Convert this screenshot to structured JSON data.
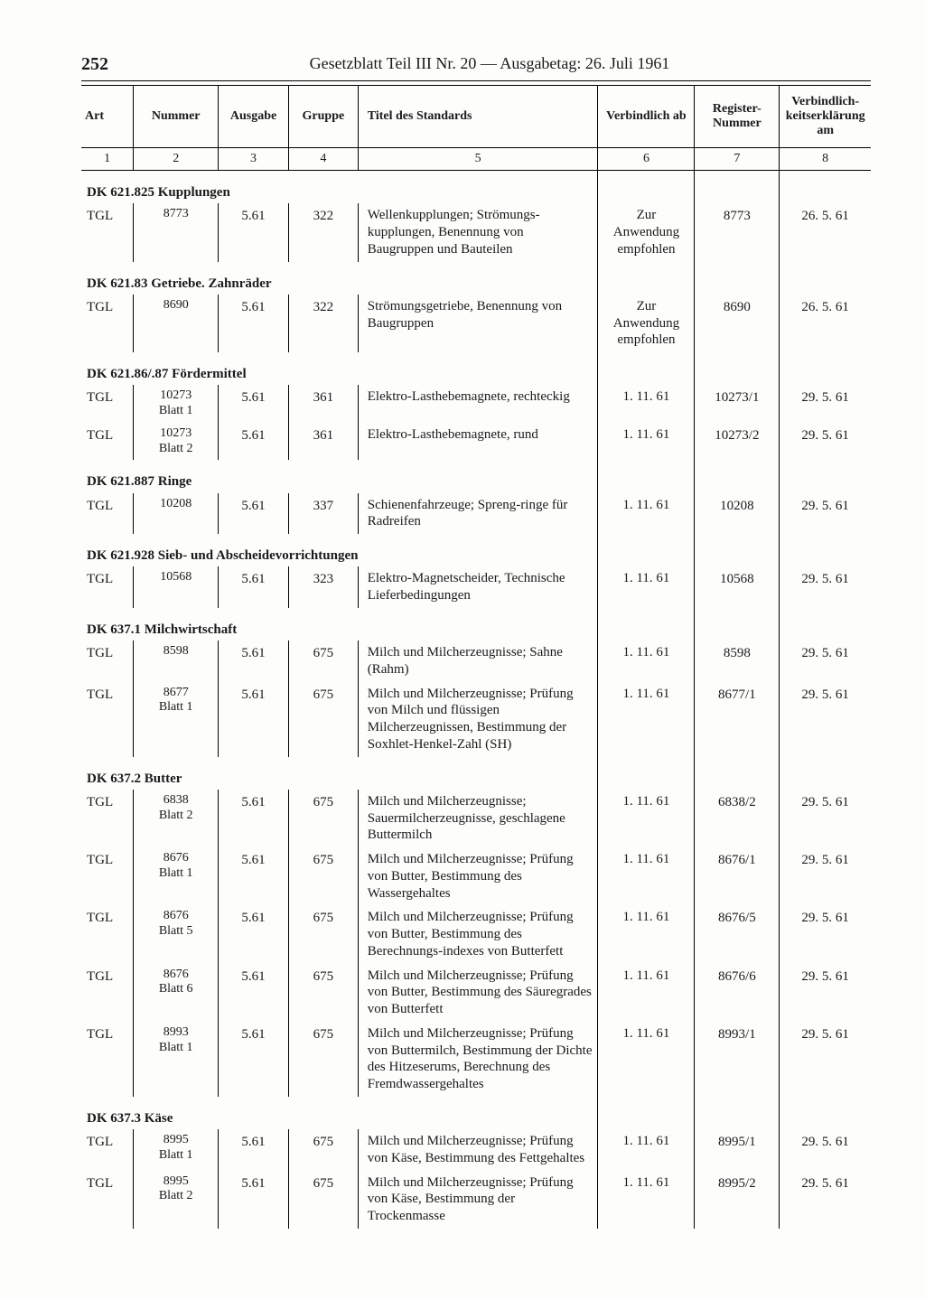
{
  "page_number": "252",
  "header": "Gesetzblatt Teil III Nr. 20 — Ausgabetag: 26. Juli 1961",
  "columns": {
    "c1": "Art",
    "c2": "Nummer",
    "c3": "Ausgabe",
    "c4": "Gruppe",
    "c5": "Titel des Standards",
    "c6": "Verbindlich ab",
    "c7": "Register-Nummer",
    "c8": "Verbindlich-keitserklärung am"
  },
  "colnums": {
    "n1": "1",
    "n2": "2",
    "n3": "3",
    "n4": "4",
    "n5": "5",
    "n6": "6",
    "n7": "7",
    "n8": "8"
  },
  "sections": [
    {
      "heading": "DK 621.825 Kupplungen",
      "rows": [
        {
          "art": "TGL",
          "nummer": "8773",
          "ausg": "5.61",
          "gruppe": "322",
          "titel": "Wellenkupplungen; Strömungs-kupplungen, Benennung von Baugruppen und Bauteilen",
          "verb": "Zur Anwendung empfohlen",
          "reg": "8773",
          "erkl": "26. 5. 61"
        }
      ]
    },
    {
      "heading": "DK 621.83 Getriebe. Zahnräder",
      "rows": [
        {
          "art": "TGL",
          "nummer": "8690",
          "ausg": "5.61",
          "gruppe": "322",
          "titel": "Strömungsgetriebe, Benennung von Baugruppen",
          "verb": "Zur Anwendung empfohlen",
          "reg": "8690",
          "erkl": "26. 5. 61"
        }
      ]
    },
    {
      "heading": "DK 621.86/.87 Fördermittel",
      "rows": [
        {
          "art": "TGL",
          "nummer": "10273",
          "nummer_sub": "Blatt 1",
          "ausg": "5.61",
          "gruppe": "361",
          "titel": "Elektro-Lasthebemagnete, rechteckig",
          "verb": "1. 11. 61",
          "reg": "10273/1",
          "erkl": "29. 5. 61"
        },
        {
          "art": "TGL",
          "nummer": "10273",
          "nummer_sub": "Blatt 2",
          "ausg": "5.61",
          "gruppe": "361",
          "titel": "Elektro-Lasthebemagnete, rund",
          "verb": "1. 11. 61",
          "reg": "10273/2",
          "erkl": "29. 5. 61"
        }
      ]
    },
    {
      "heading": "DK 621.887 Ringe",
      "rows": [
        {
          "art": "TGL",
          "nummer": "10208",
          "ausg": "5.61",
          "gruppe": "337",
          "titel": "Schienenfahrzeuge; Spreng-ringe für Radreifen",
          "verb": "1. 11. 61",
          "reg": "10208",
          "erkl": "29. 5. 61"
        }
      ]
    },
    {
      "heading": "DK 621.928 Sieb- und Abscheidevorrichtungen",
      "rows": [
        {
          "art": "TGL",
          "nummer": "10568",
          "ausg": "5.61",
          "gruppe": "323",
          "titel": "Elektro-Magnetscheider, Technische Lieferbedingungen",
          "verb": "1. 11. 61",
          "reg": "10568",
          "erkl": "29. 5. 61"
        }
      ]
    },
    {
      "heading": "DK 637.1 Milchwirtschaft",
      "rows": [
        {
          "art": "TGL",
          "nummer": "8598",
          "ausg": "5.61",
          "gruppe": "675",
          "titel": "Milch und Milcherzeugnisse; Sahne (Rahm)",
          "verb": "1. 11. 61",
          "reg": "8598",
          "erkl": "29. 5. 61"
        },
        {
          "art": "TGL",
          "nummer": "8677",
          "nummer_sub": "Blatt 1",
          "ausg": "5.61",
          "gruppe": "675",
          "titel": "Milch und Milcherzeugnisse; Prüfung von Milch und flüssigen Milcherzeugnissen, Bestimmung der Soxhlet-Henkel-Zahl (SH)",
          "verb": "1. 11. 61",
          "reg": "8677/1",
          "erkl": "29. 5. 61"
        }
      ]
    },
    {
      "heading": "DK 637.2 Butter",
      "rows": [
        {
          "art": "TGL",
          "nummer": "6838",
          "nummer_sub": "Blatt 2",
          "ausg": "5.61",
          "gruppe": "675",
          "titel": "Milch und Milcherzeugnisse; Sauermilcherzeugnisse, geschlagene Buttermilch",
          "verb": "1. 11. 61",
          "reg": "6838/2",
          "erkl": "29. 5. 61"
        },
        {
          "art": "TGL",
          "nummer": "8676",
          "nummer_sub": "Blatt 1",
          "ausg": "5.61",
          "gruppe": "675",
          "titel": "Milch und Milcherzeugnisse; Prüfung von Butter, Bestimmung des Wassergehaltes",
          "verb": "1. 11. 61",
          "reg": "8676/1",
          "erkl": "29. 5. 61"
        },
        {
          "art": "TGL",
          "nummer": "8676",
          "nummer_sub": "Blatt 5",
          "ausg": "5.61",
          "gruppe": "675",
          "titel": "Milch und Milcherzeugnisse; Prüfung von Butter, Bestimmung des Berechnungs-indexes von Butterfett",
          "verb": "1. 11. 61",
          "reg": "8676/5",
          "erkl": "29. 5. 61"
        },
        {
          "art": "TGL",
          "nummer": "8676",
          "nummer_sub": "Blatt 6",
          "ausg": "5.61",
          "gruppe": "675",
          "titel": "Milch und Milcherzeugnisse; Prüfung von Butter, Bestimmung des Säuregrades von Butterfett",
          "verb": "1. 11. 61",
          "reg": "8676/6",
          "erkl": "29. 5. 61"
        },
        {
          "art": "TGL",
          "nummer": "8993",
          "nummer_sub": "Blatt 1",
          "ausg": "5.61",
          "gruppe": "675",
          "titel": "Milch und Milcherzeugnisse; Prüfung von Buttermilch, Bestimmung der Dichte des Hitzeserums, Berechnung des Fremdwassergehaltes",
          "verb": "1. 11. 61",
          "reg": "8993/1",
          "erkl": "29. 5. 61"
        }
      ]
    },
    {
      "heading": "DK 637.3 Käse",
      "rows": [
        {
          "art": "TGL",
          "nummer": "8995",
          "nummer_sub": "Blatt 1",
          "ausg": "5.61",
          "gruppe": "675",
          "titel": "Milch und Milcherzeugnisse; Prüfung von Käse, Bestimmung des Fettgehaltes",
          "verb": "1. 11. 61",
          "reg": "8995/1",
          "erkl": "29. 5. 61"
        },
        {
          "art": "TGL",
          "nummer": "8995",
          "nummer_sub": "Blatt 2",
          "ausg": "5.61",
          "gruppe": "675",
          "titel": "Milch und Milcherzeugnisse; Prüfung von Käse, Bestimmung der Trockenmasse",
          "verb": "1. 11. 61",
          "reg": "8995/2",
          "erkl": "29. 5. 61"
        }
      ]
    }
  ],
  "styling": {
    "background": "#fdfdfc",
    "text_color": "#1a1a1a",
    "rule_color": "#000000",
    "body_fontsize": 15,
    "header_fontsize": 18,
    "pagenum_fontsize": 20
  }
}
